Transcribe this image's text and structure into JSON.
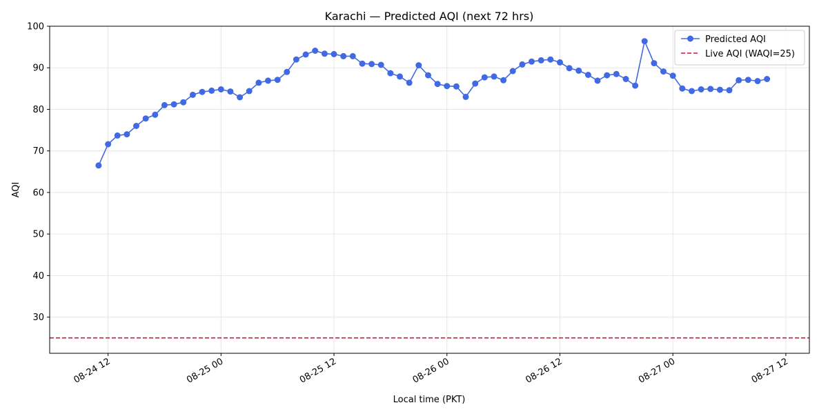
{
  "chart_data": {
    "type": "line",
    "title": "Karachi — Predicted AQI (next 72 hrs)",
    "xlabel": "Local time (PKT)",
    "ylabel": "AQI",
    "x_ticks": [
      "08-24 12",
      "08-25 00",
      "08-25 12",
      "08-26 00",
      "08-26 12",
      "08-27 00",
      "08-27 12"
    ],
    "y_ticks": [
      30,
      40,
      50,
      60,
      70,
      80,
      90,
      100
    ],
    "ylim": [
      21.3,
      100
    ],
    "xlim_hours": [
      -6.2,
      74.5
    ],
    "grid": true,
    "legend_position": "top-right",
    "series": [
      {
        "name": "Predicted AQI",
        "color": "#4169e1",
        "style": "line-with-markers",
        "x_hours_from_08-24_12": [
          -1,
          0,
          1,
          2,
          3,
          4,
          5,
          6,
          7,
          8,
          9,
          10,
          11,
          12,
          13,
          14,
          15,
          16,
          17,
          18,
          19,
          20,
          21,
          22,
          23,
          24,
          25,
          26,
          27,
          28,
          29,
          30,
          31,
          32,
          33,
          34,
          35,
          36,
          37,
          38,
          39,
          40,
          41,
          42,
          43,
          44,
          45,
          46,
          47,
          48,
          49,
          50,
          51,
          52,
          53,
          54,
          55,
          56,
          57,
          58,
          59,
          60,
          61,
          62,
          63,
          64,
          65,
          66,
          67,
          68,
          69,
          70
        ],
        "values": [
          66.5,
          71.6,
          73.7,
          74.0,
          76.0,
          77.8,
          78.7,
          81.0,
          81.2,
          81.7,
          83.5,
          84.2,
          84.5,
          84.8,
          84.3,
          82.9,
          84.4,
          86.4,
          86.9,
          87.1,
          89.0,
          92.0,
          93.2,
          94.1,
          93.4,
          93.3,
          92.8,
          92.8,
          91.0,
          90.9,
          90.7,
          88.7,
          87.9,
          86.4,
          90.6,
          88.2,
          86.1,
          85.6,
          85.5,
          83.0,
          86.2,
          87.7,
          87.9,
          87.0,
          89.2,
          90.8,
          91.5,
          91.8,
          92.0,
          91.3,
          89.9,
          89.3,
          88.3,
          86.9,
          88.2,
          88.5,
          87.3,
          85.7,
          96.4,
          91.1,
          89.1,
          88.1,
          85.0,
          84.4,
          84.8,
          84.9,
          84.7,
          84.6,
          87.0,
          87.1,
          86.8,
          87.3
        ]
      },
      {
        "name": "Live AQI (WAQI=25)",
        "color": "#dc143c",
        "style": "dashed-horizontal",
        "value": 25
      }
    ]
  }
}
